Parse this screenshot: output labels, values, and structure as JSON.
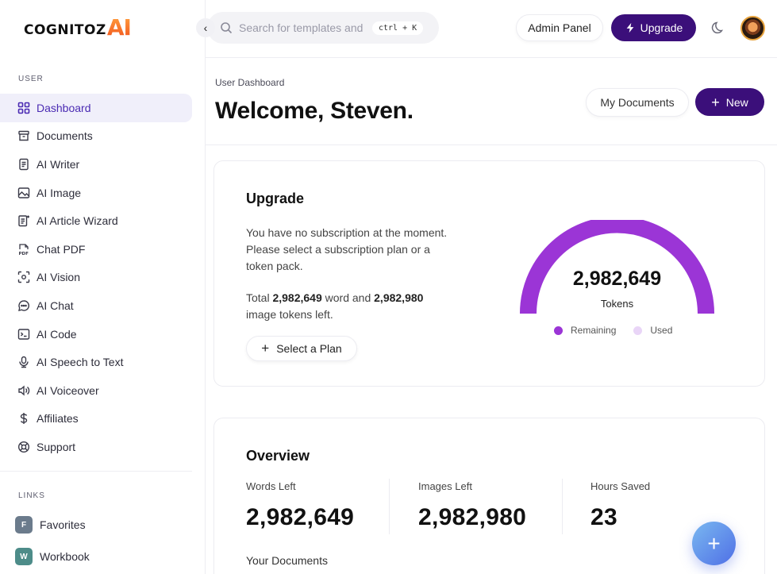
{
  "logo": {
    "text": "COGNITOZ",
    "ai": "AI"
  },
  "sidebar": {
    "section_user": "USER",
    "items": [
      {
        "label": "Dashboard",
        "icon": "dashboard-icon",
        "active": true
      },
      {
        "label": "Documents",
        "icon": "archive-icon"
      },
      {
        "label": "AI Writer",
        "icon": "document-text-icon"
      },
      {
        "label": "AI Image",
        "icon": "image-icon"
      },
      {
        "label": "AI Article Wizard",
        "icon": "article-wizard-icon"
      },
      {
        "label": "Chat PDF",
        "icon": "pdf-icon"
      },
      {
        "label": "AI Vision",
        "icon": "scan-eye-icon"
      },
      {
        "label": "AI Chat",
        "icon": "chat-bubble-icon"
      },
      {
        "label": "AI Code",
        "icon": "terminal-icon"
      },
      {
        "label": "AI Speech to Text",
        "icon": "microphone-icon"
      },
      {
        "label": "AI Voiceover",
        "icon": "speaker-icon"
      },
      {
        "label": "Affiliates",
        "icon": "dollar-icon"
      },
      {
        "label": "Support",
        "icon": "lifebuoy-icon"
      }
    ],
    "section_links": "LINKS",
    "links": [
      {
        "badge": "F",
        "label": "Favorites",
        "color": "#6b7b8c"
      },
      {
        "badge": "W",
        "label": "Workbook",
        "color": "#4d8c89"
      }
    ]
  },
  "topbar": {
    "collapse_glyph": "‹",
    "search_placeholder": "Search for templates and c",
    "shortcut": "ctrl + K",
    "admin_label": "Admin Panel",
    "upgrade_label": "Upgrade"
  },
  "header": {
    "breadcrumb": "User Dashboard",
    "welcome": "Welcome, Steven.",
    "my_documents": "My Documents",
    "new_label": "New"
  },
  "upgrade_card": {
    "title": "Upgrade",
    "message": "You have no subscription at the moment. Please select a subscription plan or a token pack.",
    "tokens_prefix": "Total ",
    "word_tokens": "2,982,649",
    "tokens_mid": " word and ",
    "image_tokens": "2,982,980",
    "tokens_suffix": " image tokens left.",
    "select_plan": "Select a Plan",
    "gauge_value": "2,982,649",
    "gauge_label": "Tokens",
    "legend_remaining": "Remaining",
    "legend_used": "Used",
    "remaining_fraction": 1.0,
    "colors": {
      "remaining": "#9b35d6",
      "used": "#e9d5f7"
    }
  },
  "overview": {
    "title": "Overview",
    "stats": [
      {
        "label": "Words Left",
        "value": "2,982,649"
      },
      {
        "label": "Images Left",
        "value": "2,982,980"
      },
      {
        "label": "Hours Saved",
        "value": "23"
      }
    ],
    "your_documents": "Your Documents"
  },
  "fab_label": "+",
  "colors": {
    "brand": "#3b0f7a",
    "accent_orange": "#f2581e",
    "active_bg": "#f0effa"
  }
}
